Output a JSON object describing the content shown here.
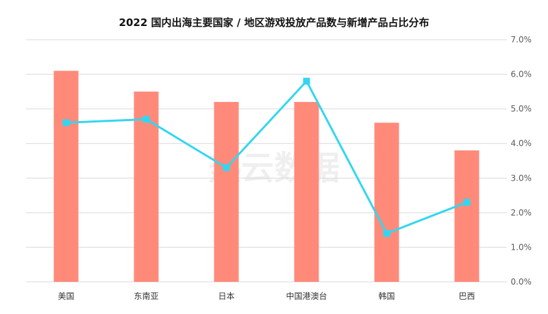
{
  "chart_data": {
    "type": "bar",
    "title": "2022 国内出海主要国家 / 地区游戏投放产品数与新增产品占比分布",
    "categories": [
      "美国",
      "东南亚",
      "日本",
      "中国港澳台",
      "韩国",
      "巴西"
    ],
    "series": [
      {
        "kind": "bar",
        "axis": "left",
        "values": [
          6.1,
          5.5,
          5.2,
          5.2,
          4.6,
          3.8
        ]
      },
      {
        "kind": "line",
        "axis": "right",
        "values": [
          4.6,
          4.7,
          3.3,
          5.8,
          1.4,
          2.3
        ]
      }
    ],
    "y_left": {
      "min": 0,
      "max": 7,
      "ticks": [
        0,
        1,
        2,
        3,
        4,
        5,
        6,
        7
      ],
      "show_labels": false
    },
    "y_right": {
      "min": 0,
      "max": 7,
      "ticks": [
        "0.0%",
        "1.0%",
        "2.0%",
        "3.0%",
        "4.0%",
        "5.0%",
        "6.0%",
        "7.0%"
      ]
    },
    "grid": true,
    "colors": {
      "bar": "#ff8a7a",
      "line": "#33d6f0",
      "grid": "#d9d9d9",
      "marker": "#33d6f0"
    },
    "watermark": "热云数据"
  }
}
